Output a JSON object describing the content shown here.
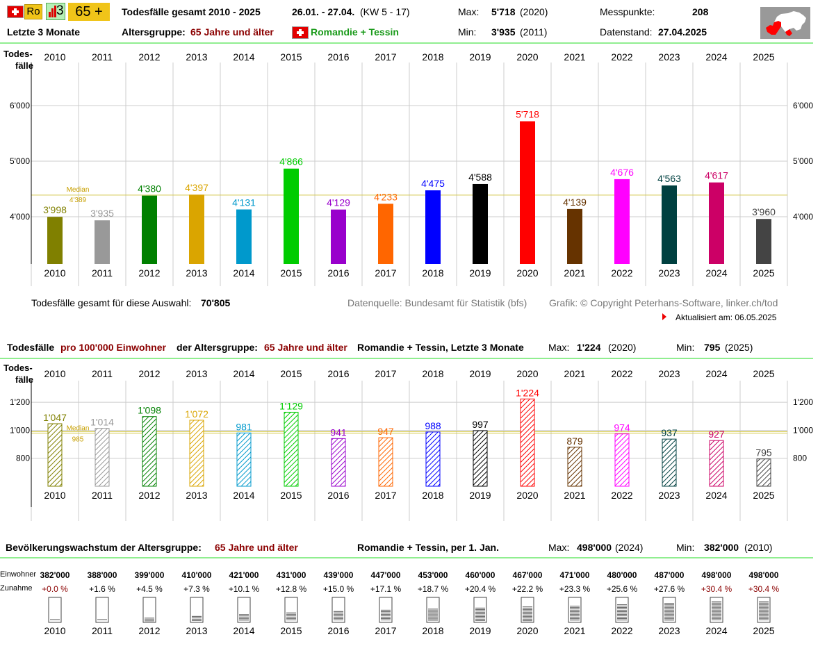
{
  "header": {
    "ro_label": "Ro",
    "bar_label": "3",
    "age_button": "65 +",
    "title": "Todesfälle gesamt 2010 - 2025",
    "period": "26.01. - 27.04.",
    "period_kw": "(KW 5 - 17)",
    "max_label": "Max:",
    "max_value": "5'718",
    "max_year": "(2020)",
    "min_label": "Min:",
    "min_value": "3'935",
    "min_year": "(2011)",
    "messpunkte_label": "Messpunkte:",
    "messpunkte_value": "208",
    "datenstand_label": "Datenstand:",
    "datenstand_value": "27.04.2025",
    "last_months": "Letzte 3 Monate",
    "altersgruppe_label": "Altersgruppe:",
    "altersgruppe_value": "65 Jahre und älter",
    "region": "Romandie + Tessin"
  },
  "years": [
    "2010",
    "2011",
    "2012",
    "2013",
    "2014",
    "2015",
    "2016",
    "2017",
    "2018",
    "2019",
    "2020",
    "2021",
    "2022",
    "2023",
    "2024",
    "2025"
  ],
  "colors": [
    "#808000",
    "#999999",
    "#008000",
    "#daa500",
    "#0099cc",
    "#00cc00",
    "#9900cc",
    "#ff6600",
    "#0000ff",
    "#000000",
    "#ff0000",
    "#663300",
    "#ff00ff",
    "#004040",
    "#cc0066",
    "#444444"
  ],
  "chart_data": [
    {
      "type": "bar",
      "title": "Todesfälle gesamt 2010 - 2025",
      "ylabel": "Todes-\nfälle",
      "categories": [
        "2010",
        "2011",
        "2012",
        "2013",
        "2014",
        "2015",
        "2016",
        "2017",
        "2018",
        "2019",
        "2020",
        "2021",
        "2022",
        "2023",
        "2024",
        "2025"
      ],
      "values": [
        3998,
        3935,
        4380,
        4397,
        4131,
        4866,
        4129,
        4233,
        4475,
        4588,
        5718,
        4139,
        4676,
        4563,
        4617,
        3960
      ],
      "labels": [
        "3'998",
        "3'935",
        "4'380",
        "4'397",
        "4'131",
        "4'866",
        "4'129",
        "4'233",
        "4'475",
        "4'588",
        "5'718",
        "4'139",
        "4'676",
        "4'563",
        "4'617",
        "3'960"
      ],
      "yticks": [
        4000,
        5000,
        6000
      ],
      "ytick_labels": [
        "4'000",
        "5'000",
        "6'000"
      ],
      "ylim": [
        3150,
        6750
      ],
      "median": 4389,
      "median_label": "Median",
      "median_value_label": "4'389"
    },
    {
      "type": "bar",
      "title": "Todesfälle pro 100'000 Einwohner der Altersgruppe: 65 Jahre und älter Romandie + Tessin, Letzte 3 Monate",
      "ylabel": "Todes-\nfälle",
      "categories": [
        "2010",
        "2011",
        "2012",
        "2013",
        "2014",
        "2015",
        "2016",
        "2017",
        "2018",
        "2019",
        "2020",
        "2021",
        "2022",
        "2023",
        "2024",
        "2025"
      ],
      "values": [
        1047,
        1014,
        1098,
        1072,
        981,
        1129,
        941,
        947,
        988,
        997,
        1224,
        879,
        974,
        937,
        927,
        795
      ],
      "labels": [
        "1'047",
        "1'014",
        "1'098",
        "1'072",
        "981",
        "1'129",
        "941",
        "947",
        "988",
        "997",
        "1'224",
        "879",
        "974",
        "937",
        "927",
        "795"
      ],
      "yticks": [
        800,
        1000,
        1200
      ],
      "ytick_labels": [
        "800",
        "1'000",
        "1'200"
      ],
      "ylim": [
        600,
        1315
      ],
      "median": 985,
      "median_label": "Median",
      "median_value_label": "985"
    },
    {
      "type": "table",
      "title": "Bevölkerungswachstum der Altersgruppe: 65 Jahre und älter",
      "categories": [
        "2010",
        "2011",
        "2012",
        "2013",
        "2014",
        "2015",
        "2016",
        "2017",
        "2018",
        "2019",
        "2020",
        "2021",
        "2022",
        "2023",
        "2024",
        "2025"
      ],
      "einwohner": [
        382000,
        388000,
        399000,
        410000,
        421000,
        431000,
        439000,
        447000,
        453000,
        460000,
        467000,
        471000,
        480000,
        487000,
        498000,
        498000
      ],
      "einwohner_labels": [
        "382'000",
        "388'000",
        "399'000",
        "410'000",
        "421'000",
        "431'000",
        "439'000",
        "447'000",
        "453'000",
        "460'000",
        "467'000",
        "471'000",
        "480'000",
        "487'000",
        "498'000",
        "498'000"
      ],
      "zunahme_labels": [
        "+0.0 %",
        "+1.6 %",
        "+4.5 %",
        "+7.3 %",
        "+10.1 %",
        "+12.8 %",
        "+15.0 %",
        "+17.1 %",
        "+18.7 %",
        "+20.4 %",
        "+22.2 %",
        "+23.3 %",
        "+25.6 %",
        "+27.6 %",
        "+30.4 %",
        "+30.4 %"
      ],
      "zunahme": [
        0.0,
        1.6,
        4.5,
        7.3,
        10.1,
        12.8,
        15.0,
        17.1,
        18.7,
        20.4,
        22.2,
        23.3,
        25.6,
        27.6,
        30.4,
        30.4
      ]
    }
  ],
  "chart1": {
    "ylabel_1": "Todes-",
    "ylabel_2": "fälle",
    "total_label": "Todesfälle gesamt für diese Auswahl:",
    "total_value": "70'805",
    "source": "Datenquelle: Bundesamt für Statistik (bfs)",
    "copyright": "Grafik: © Copyright Peterhans-Software, linker.ch/tod",
    "updated": "Aktualisiert am: 06.05.2025"
  },
  "chart2": {
    "title_a": "Todesfälle",
    "title_b": "pro 100'000 Einwohner",
    "title_c": "der Altersgruppe:",
    "title_d": "65 Jahre und älter",
    "title_e": "Romandie + Tessin, Letzte 3 Monate",
    "max_label": "Max:",
    "max_value": "1'224",
    "max_year": "(2020)",
    "min_label": "Min:",
    "min_value": "795",
    "min_year": "(2025)",
    "ylabel_1": "Todes-",
    "ylabel_2": "fälle"
  },
  "chart3": {
    "title_a": "Bevölkerungswachstum der Altersgruppe:",
    "title_b": "65 Jahre und älter",
    "title_c": "Romandie + Tessin, per 1. Jan.",
    "max_label": "Max:",
    "max_value": "498'000",
    "max_year": "(2024)",
    "min_label": "Min:",
    "min_value": "382'000",
    "min_year": "(2010)",
    "row1_label": "Einwohner",
    "row2_label": "Zunahme"
  }
}
